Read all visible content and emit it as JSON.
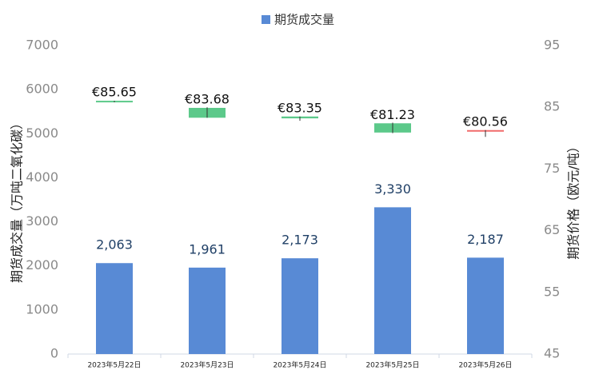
{
  "chart_data": {
    "type": "bar",
    "legend": "top",
    "categories": [
      "2023年5月22日",
      "2023年5月23日",
      "2023年5月24日",
      "2023年5月25日",
      "2023年5月26日"
    ],
    "series": [
      {
        "name": "期货成交量",
        "color": "#588ad5",
        "values": [
          2063,
          1961,
          2173,
          3330,
          2187
        ],
        "value_labels": [
          "2,063",
          "1,961",
          "2,173",
          "3,330",
          "2,187"
        ]
      },
      {
        "type": "candlestick",
        "axis": "y2",
        "up_color": "#5cc98a",
        "down_color": "#f06b6b",
        "values": [
          85.65,
          83.68,
          83.35,
          81.23,
          80.56
        ],
        "value_labels": [
          "€85.65",
          "€83.68",
          "€83.35",
          "€81.23",
          "€80.56"
        ],
        "open": [
          85.8,
          83.3,
          83.2,
          80.9,
          81.3
        ],
        "close": [
          86.05,
          84.9,
          83.5,
          82.4,
          81.1
        ],
        "high": [
          86.05,
          85.0,
          83.5,
          82.5,
          81.3
        ],
        "low": [
          85.8,
          83.3,
          82.8,
          80.8,
          80.2
        ]
      }
    ],
    "ylabel": "期货成交量（万吨二氧化碳）",
    "y2label": "期货价格（欧元/吨）",
    "ylim": [
      0,
      7000
    ],
    "yticks": [
      0,
      1000,
      2000,
      3000,
      4000,
      5000,
      6000,
      7000
    ],
    "y2lim": [
      45,
      95
    ],
    "y2ticks": [
      45,
      55,
      65,
      75,
      85,
      95
    ]
  }
}
